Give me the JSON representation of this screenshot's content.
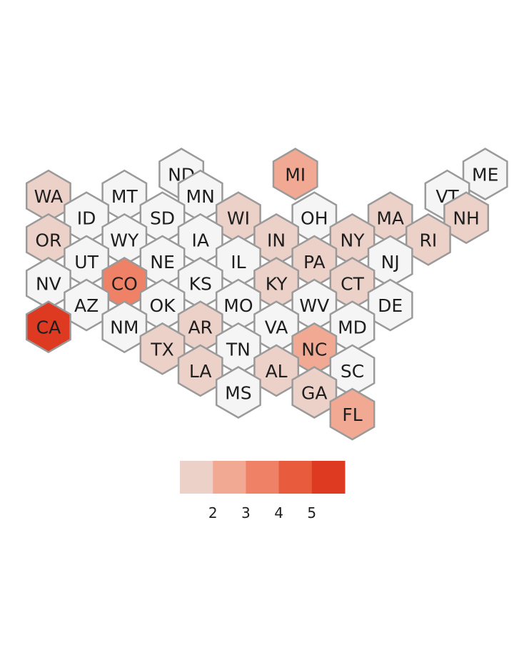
{
  "map": {
    "no_data_color": "#f5f5f5",
    "border_color": "#9a9a9a",
    "states": [
      {
        "abbr": "ND",
        "col": 8,
        "row": 0,
        "level": 0
      },
      {
        "abbr": "MI",
        "col": 14,
        "row": 0,
        "level": 2
      },
      {
        "abbr": "ME",
        "col": 24,
        "row": 0,
        "level": 0
      },
      {
        "abbr": "WA",
        "col": 1,
        "row": 1,
        "level": 1
      },
      {
        "abbr": "MT",
        "col": 5,
        "row": 1,
        "level": 0
      },
      {
        "abbr": "MN",
        "col": 9,
        "row": 1,
        "level": 0
      },
      {
        "abbr": "VT",
        "col": 22,
        "row": 1,
        "level": 0
      },
      {
        "abbr": "ID",
        "col": 3,
        "row": 2,
        "level": 0
      },
      {
        "abbr": "SD",
        "col": 7,
        "row": 2,
        "level": 0
      },
      {
        "abbr": "WI",
        "col": 11,
        "row": 2,
        "level": 1
      },
      {
        "abbr": "OH",
        "col": 15,
        "row": 2,
        "level": 0
      },
      {
        "abbr": "MA",
        "col": 19,
        "row": 2,
        "level": 1
      },
      {
        "abbr": "NH",
        "col": 23,
        "row": 2,
        "level": 1
      },
      {
        "abbr": "OR",
        "col": 1,
        "row": 3,
        "level": 1
      },
      {
        "abbr": "WY",
        "col": 5,
        "row": 3,
        "level": 0
      },
      {
        "abbr": "IA",
        "col": 9,
        "row": 3,
        "level": 0
      },
      {
        "abbr": "IN",
        "col": 13,
        "row": 3,
        "level": 1
      },
      {
        "abbr": "NY",
        "col": 17,
        "row": 3,
        "level": 1
      },
      {
        "abbr": "RI",
        "col": 21,
        "row": 3,
        "level": 1
      },
      {
        "abbr": "UT",
        "col": 3,
        "row": 4,
        "level": 0
      },
      {
        "abbr": "NE",
        "col": 7,
        "row": 4,
        "level": 0
      },
      {
        "abbr": "IL",
        "col": 11,
        "row": 4,
        "level": 0
      },
      {
        "abbr": "PA",
        "col": 15,
        "row": 4,
        "level": 1
      },
      {
        "abbr": "NJ",
        "col": 19,
        "row": 4,
        "level": 0
      },
      {
        "abbr": "NV",
        "col": 1,
        "row": 5,
        "level": 0
      },
      {
        "abbr": "CO",
        "col": 5,
        "row": 5,
        "level": 3
      },
      {
        "abbr": "KS",
        "col": 9,
        "row": 5,
        "level": 0
      },
      {
        "abbr": "KY",
        "col": 13,
        "row": 5,
        "level": 1
      },
      {
        "abbr": "CT",
        "col": 17,
        "row": 5,
        "level": 1
      },
      {
        "abbr": "AZ",
        "col": 3,
        "row": 6,
        "level": 0
      },
      {
        "abbr": "OK",
        "col": 7,
        "row": 6,
        "level": 0
      },
      {
        "abbr": "MO",
        "col": 11,
        "row": 6,
        "level": 0
      },
      {
        "abbr": "WV",
        "col": 15,
        "row": 6,
        "level": 0
      },
      {
        "abbr": "DE",
        "col": 19,
        "row": 6,
        "level": 0
      },
      {
        "abbr": "CA",
        "col": 1,
        "row": 7,
        "level": 5
      },
      {
        "abbr": "NM",
        "col": 5,
        "row": 7,
        "level": 0
      },
      {
        "abbr": "AR",
        "col": 9,
        "row": 7,
        "level": 1
      },
      {
        "abbr": "VA",
        "col": 13,
        "row": 7,
        "level": 0
      },
      {
        "abbr": "MD",
        "col": 17,
        "row": 7,
        "level": 0
      },
      {
        "abbr": "TX",
        "col": 7,
        "row": 8,
        "level": 1
      },
      {
        "abbr": "TN",
        "col": 11,
        "row": 8,
        "level": 0
      },
      {
        "abbr": "NC",
        "col": 15,
        "row": 8,
        "level": 2
      },
      {
        "abbr": "LA",
        "col": 9,
        "row": 9,
        "level": 1
      },
      {
        "abbr": "AL",
        "col": 13,
        "row": 9,
        "level": 1
      },
      {
        "abbr": "SC",
        "col": 17,
        "row": 9,
        "level": 0
      },
      {
        "abbr": "MS",
        "col": 11,
        "row": 10,
        "level": 0
      },
      {
        "abbr": "GA",
        "col": 15,
        "row": 10,
        "level": 1
      },
      {
        "abbr": "FL",
        "col": 17,
        "row": 11,
        "level": 2
      }
    ]
  },
  "legend": {
    "colors": [
      "#ecd1c9",
      "#f2a994",
      "#ef8166",
      "#e85b3c",
      "#de3a22"
    ],
    "ticks": [
      "2",
      "3",
      "4",
      "5"
    ]
  }
}
